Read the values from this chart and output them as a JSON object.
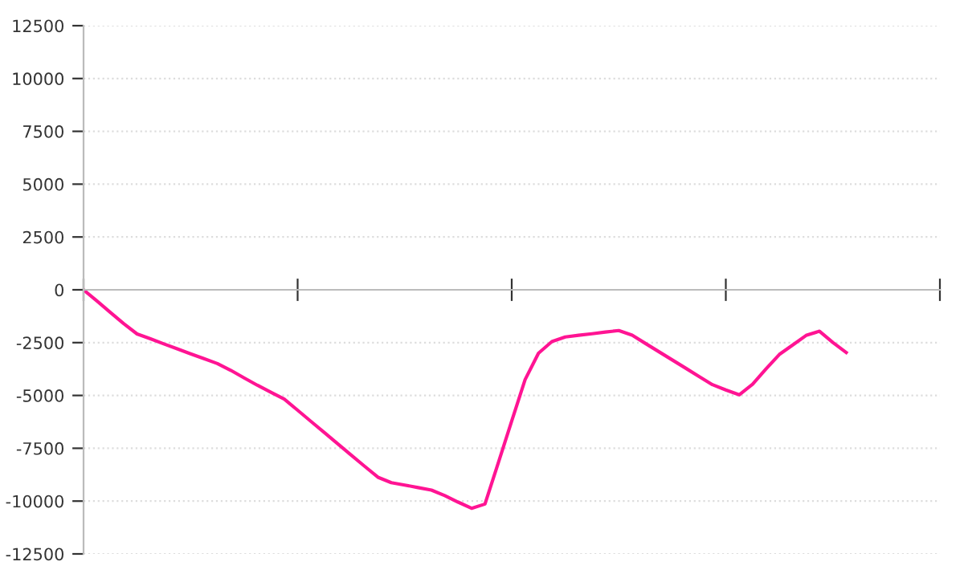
{
  "chart_data": {
    "type": "line",
    "categories": [
      null,
      null,
      null,
      null,
      null,
      null,
      null,
      null,
      null,
      null,
      null,
      null,
      null,
      null,
      null,
      null,
      null,
      null,
      null,
      null,
      null,
      null,
      null,
      null,
      null,
      null,
      null,
      null,
      null,
      null,
      null,
      null,
      null,
      null,
      null,
      null,
      null,
      null,
      null,
      null,
      null,
      null,
      null,
      null,
      null,
      null,
      null,
      null,
      null,
      null,
      null,
      null,
      null,
      null,
      null,
      null,
      null,
      null,
      null,
      null,
      null,
      null,
      null,
      null,
      null
    ],
    "series": [
      {
        "color": "#ff1493",
        "values": [
          0,
          -530,
          -1070,
          -1600,
          -2090,
          -2320,
          -2560,
          -2790,
          -3030,
          -3260,
          -3490,
          -3810,
          -4170,
          -4520,
          -4850,
          -5170,
          -5700,
          -6230,
          -6760,
          -7290,
          -7820,
          -8350,
          -8870,
          -9130,
          -9240,
          -9360,
          -9480,
          -9740,
          -10050,
          -10340,
          -10140,
          -8180,
          -6210,
          -4250,
          -3000,
          -2450,
          -2230,
          -2150,
          -2080,
          -2000,
          -1930,
          -2150,
          -2540,
          -2930,
          -3320,
          -3710,
          -4100,
          -4490,
          -4740,
          -4970,
          -4470,
          -3750,
          -3060,
          -2610,
          -2160,
          -1960,
          -2490,
          -2970,
          null,
          null,
          null,
          null,
          null,
          null,
          null
        ]
      }
    ],
    "ylim": [
      -12500,
      12500
    ],
    "yticks": [
      -12500,
      -10000,
      -7500,
      -5000,
      -2500,
      0,
      2500,
      5000,
      7500,
      10000,
      12500
    ],
    "grid": "y",
    "tick_labels": "y",
    "marker": "none",
    "line_style": "solid"
  }
}
